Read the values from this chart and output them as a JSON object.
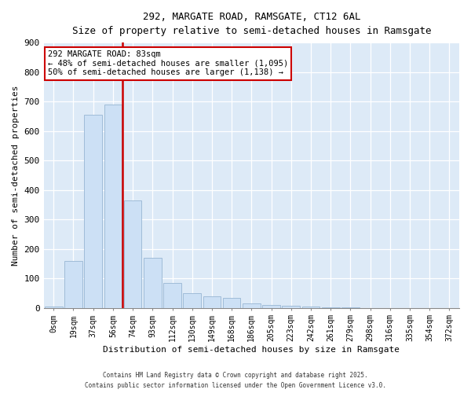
{
  "title1": "292, MARGATE ROAD, RAMSGATE, CT12 6AL",
  "title2": "Size of property relative to semi-detached houses in Ramsgate",
  "xlabel": "Distribution of semi-detached houses by size in Ramsgate",
  "ylabel": "Number of semi-detached properties",
  "bar_labels": [
    "0sqm",
    "19sqm",
    "37sqm",
    "56sqm",
    "74sqm",
    "93sqm",
    "112sqm",
    "130sqm",
    "149sqm",
    "168sqm",
    "186sqm",
    "205sqm",
    "223sqm",
    "242sqm",
    "261sqm",
    "279sqm",
    "298sqm",
    "316sqm",
    "335sqm",
    "354sqm",
    "372sqm"
  ],
  "bar_values": [
    5,
    160,
    655,
    690,
    365,
    170,
    85,
    50,
    40,
    33,
    15,
    10,
    8,
    3,
    1,
    1,
    0,
    0,
    0,
    0,
    0
  ],
  "bar_color": "#cce0f5",
  "bar_edge_color": "#a0bcd8",
  "vline_x": 3.5,
  "vline_color": "#cc0000",
  "annotation_title": "292 MARGATE ROAD: 83sqm",
  "annotation_line1": "← 48% of semi-detached houses are smaller (1,095)",
  "annotation_line2": "50% of semi-detached houses are larger (1,138) →",
  "annotation_box_color": "#ffffff",
  "annotation_box_edge": "#cc0000",
  "ylim": [
    0,
    900
  ],
  "yticks": [
    0,
    100,
    200,
    300,
    400,
    500,
    600,
    700,
    800,
    900
  ],
  "background_color": "#ddeaf7",
  "footer1": "Contains HM Land Registry data © Crown copyright and database right 2025.",
  "footer2": "Contains public sector information licensed under the Open Government Licence v3.0."
}
